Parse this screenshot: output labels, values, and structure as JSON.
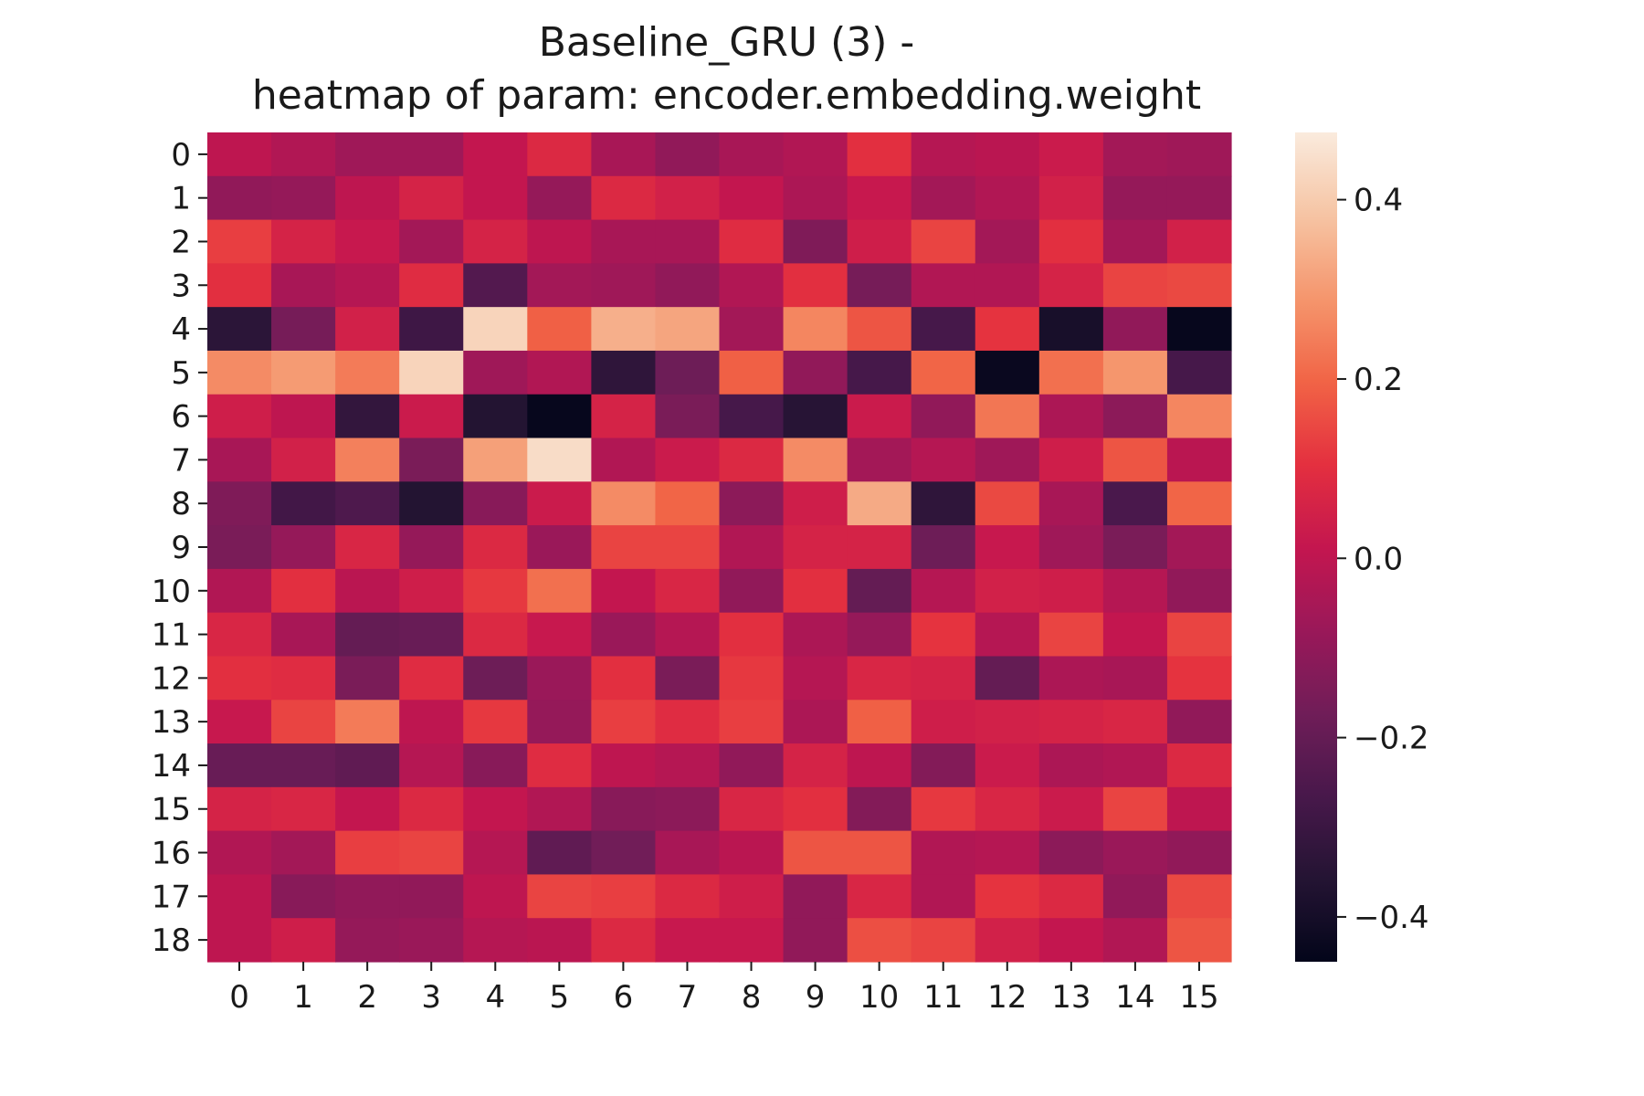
{
  "chart_data": {
    "type": "heatmap",
    "title": [
      "Baseline_GRU (3) -",
      "heatmap of param: encoder.embedding.weight"
    ],
    "xlabel": "",
    "ylabel": "",
    "x_tick_labels": [
      "0",
      "1",
      "2",
      "3",
      "4",
      "5",
      "6",
      "7",
      "8",
      "9",
      "10",
      "11",
      "12",
      "13",
      "14",
      "15"
    ],
    "y_tick_labels": [
      "0",
      "1",
      "2",
      "3",
      "4",
      "5",
      "6",
      "7",
      "8",
      "9",
      "10",
      "11",
      "12",
      "13",
      "14",
      "15",
      "16",
      "17",
      "18"
    ],
    "colorbar": {
      "range": [
        -0.45,
        0.475
      ],
      "ticks": [
        0.4,
        0.2,
        0.0,
        -0.2,
        -0.4
      ],
      "tick_labels": [
        "0.4",
        "0.2",
        "0.0",
        "−0.2",
        "−0.4"
      ],
      "colormap": "rocket"
    },
    "grid": false,
    "values": [
      [
        0.0,
        -0.03,
        -0.07,
        -0.07,
        0.01,
        0.08,
        -0.05,
        -0.1,
        -0.05,
        -0.03,
        0.1,
        -0.02,
        -0.01,
        0.03,
        -0.06,
        -0.07
      ],
      [
        -0.1,
        -0.09,
        0.0,
        0.06,
        0.01,
        -0.09,
        0.08,
        0.05,
        0.01,
        -0.04,
        0.02,
        -0.06,
        -0.03,
        0.05,
        -0.09,
        -0.09
      ],
      [
        0.13,
        0.06,
        0.02,
        -0.06,
        0.06,
        0.0,
        -0.05,
        -0.05,
        0.09,
        -0.14,
        0.04,
        0.14,
        -0.06,
        0.1,
        -0.06,
        0.05
      ],
      [
        0.1,
        -0.05,
        -0.02,
        0.09,
        -0.24,
        -0.06,
        -0.07,
        -0.1,
        -0.03,
        0.1,
        -0.16,
        -0.03,
        -0.03,
        0.06,
        0.14,
        0.15
      ],
      [
        -0.34,
        -0.16,
        0.05,
        -0.29,
        0.42,
        0.19,
        0.34,
        0.32,
        -0.06,
        0.26,
        0.17,
        -0.27,
        0.11,
        -0.39,
        -0.1,
        -0.44
      ],
      [
        0.27,
        0.3,
        0.24,
        0.42,
        -0.07,
        -0.03,
        -0.33,
        -0.18,
        0.19,
        -0.1,
        -0.27,
        0.2,
        -0.43,
        0.22,
        0.29,
        -0.27
      ],
      [
        0.04,
        0.0,
        -0.32,
        0.03,
        -0.36,
        -0.44,
        0.06,
        -0.15,
        -0.27,
        -0.35,
        0.03,
        -0.1,
        0.23,
        -0.04,
        -0.11,
        0.26
      ],
      [
        -0.05,
        0.05,
        0.25,
        -0.15,
        0.31,
        0.44,
        -0.03,
        0.03,
        0.08,
        0.27,
        -0.06,
        -0.02,
        -0.07,
        0.04,
        0.17,
        -0.01
      ],
      [
        -0.14,
        -0.28,
        -0.25,
        -0.36,
        -0.12,
        0.03,
        0.27,
        0.2,
        -0.11,
        0.04,
        0.33,
        -0.33,
        0.15,
        -0.05,
        -0.26,
        0.2
      ],
      [
        -0.15,
        -0.09,
        0.07,
        -0.09,
        0.08,
        -0.08,
        0.14,
        0.14,
        -0.03,
        0.06,
        0.06,
        -0.18,
        0.02,
        -0.07,
        -0.15,
        -0.06
      ],
      [
        -0.03,
        0.1,
        -0.01,
        0.04,
        0.12,
        0.22,
        0.01,
        0.07,
        -0.1,
        0.1,
        -0.2,
        -0.02,
        0.05,
        0.04,
        -0.02,
        -0.1
      ],
      [
        0.07,
        -0.05,
        -0.2,
        -0.19,
        0.08,
        0.02,
        -0.08,
        -0.02,
        0.1,
        -0.04,
        -0.09,
        0.11,
        -0.02,
        0.14,
        0.01,
        0.14
      ],
      [
        0.1,
        0.09,
        -0.15,
        0.09,
        -0.18,
        -0.08,
        0.1,
        -0.15,
        0.12,
        -0.02,
        0.07,
        0.06,
        -0.2,
        -0.04,
        -0.05,
        0.11
      ],
      [
        0.02,
        0.14,
        0.24,
        0.0,
        0.12,
        -0.09,
        0.13,
        0.09,
        0.13,
        -0.04,
        0.19,
        0.04,
        0.05,
        0.06,
        0.07,
        -0.1
      ],
      [
        -0.19,
        -0.19,
        -0.21,
        -0.02,
        -0.12,
        0.09,
        0.0,
        -0.02,
        -0.1,
        0.06,
        0.0,
        -0.13,
        0.03,
        -0.04,
        -0.03,
        0.08
      ],
      [
        0.06,
        0.07,
        0.01,
        0.08,
        0.01,
        -0.03,
        -0.12,
        -0.11,
        0.07,
        0.1,
        -0.13,
        0.12,
        0.07,
        0.03,
        0.14,
        0.0
      ],
      [
        -0.03,
        -0.06,
        0.13,
        0.14,
        -0.02,
        -0.21,
        -0.17,
        -0.05,
        -0.01,
        0.17,
        0.17,
        -0.03,
        -0.02,
        -0.11,
        -0.08,
        -0.1
      ],
      [
        0.0,
        -0.12,
        -0.1,
        -0.1,
        0.0,
        0.14,
        0.13,
        0.08,
        0.04,
        -0.1,
        0.07,
        -0.03,
        0.11,
        0.08,
        -0.1,
        0.15
      ],
      [
        0.0,
        0.04,
        -0.09,
        -0.08,
        -0.02,
        -0.01,
        0.08,
        0.02,
        0.02,
        -0.1,
        0.16,
        0.14,
        0.05,
        0.01,
        -0.03,
        0.17
      ]
    ]
  }
}
